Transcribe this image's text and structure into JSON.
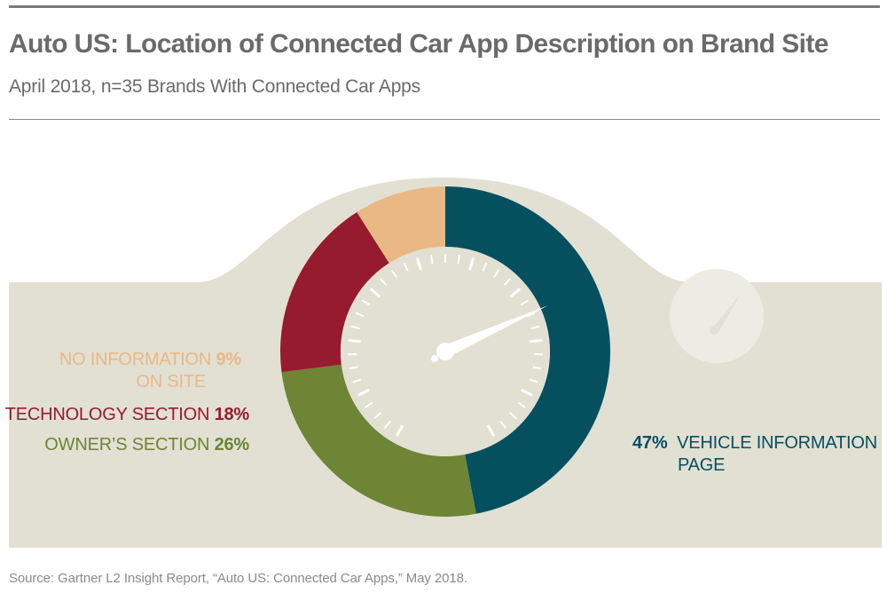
{
  "header": {
    "title": "Auto US: Location of Connected Car App Description on Brand Site",
    "subtitle": "April 2018, n=35 Brands With Connected Car Apps"
  },
  "footer": {
    "source": "Source: Gartner L2 Insight Report, “Auto US: Connected Car Apps,” May 2018."
  },
  "labels": {
    "no_info_line1": "NO INFORMATION",
    "no_info_line2": "ON SITE",
    "no_info_pct": "9%",
    "tech": "TECHNOLOGY SECTION",
    "tech_pct": "18%",
    "owner": "OWNER’S SECTION",
    "owner_pct": "26%",
    "vehicle_line1": "VEHICLE INFORMATION",
    "vehicle_line2": "PAGE",
    "vehicle_pct": "47%"
  },
  "chart_data": {
    "type": "pie",
    "variant": "donut",
    "title": "Auto US: Location of Connected Car App Description on Brand Site",
    "subtitle": "April 2018, n=35 Brands With Connected Car Apps",
    "start_angle_deg": 0,
    "direction": "clockwise",
    "slices": [
      {
        "label": "VEHICLE INFORMATION PAGE",
        "value": 47,
        "color": "#05505f"
      },
      {
        "label": "OWNER’S SECTION",
        "value": 26,
        "color": "#6e8535"
      },
      {
        "label": "TECHNOLOGY SECTION",
        "value": 18,
        "color": "#971b2f"
      },
      {
        "label": "NO INFORMATION ON SITE",
        "value": 9,
        "color": "#eab884"
      }
    ]
  },
  "colors": {
    "dashboard_bg": "#e1e0d3",
    "gauge_face": "#e1e0d3",
    "ticks": "#ffffff"
  },
  "icons": {
    "center_gauge": "speedometer-icon",
    "small_gauge": "speedometer-icon"
  }
}
